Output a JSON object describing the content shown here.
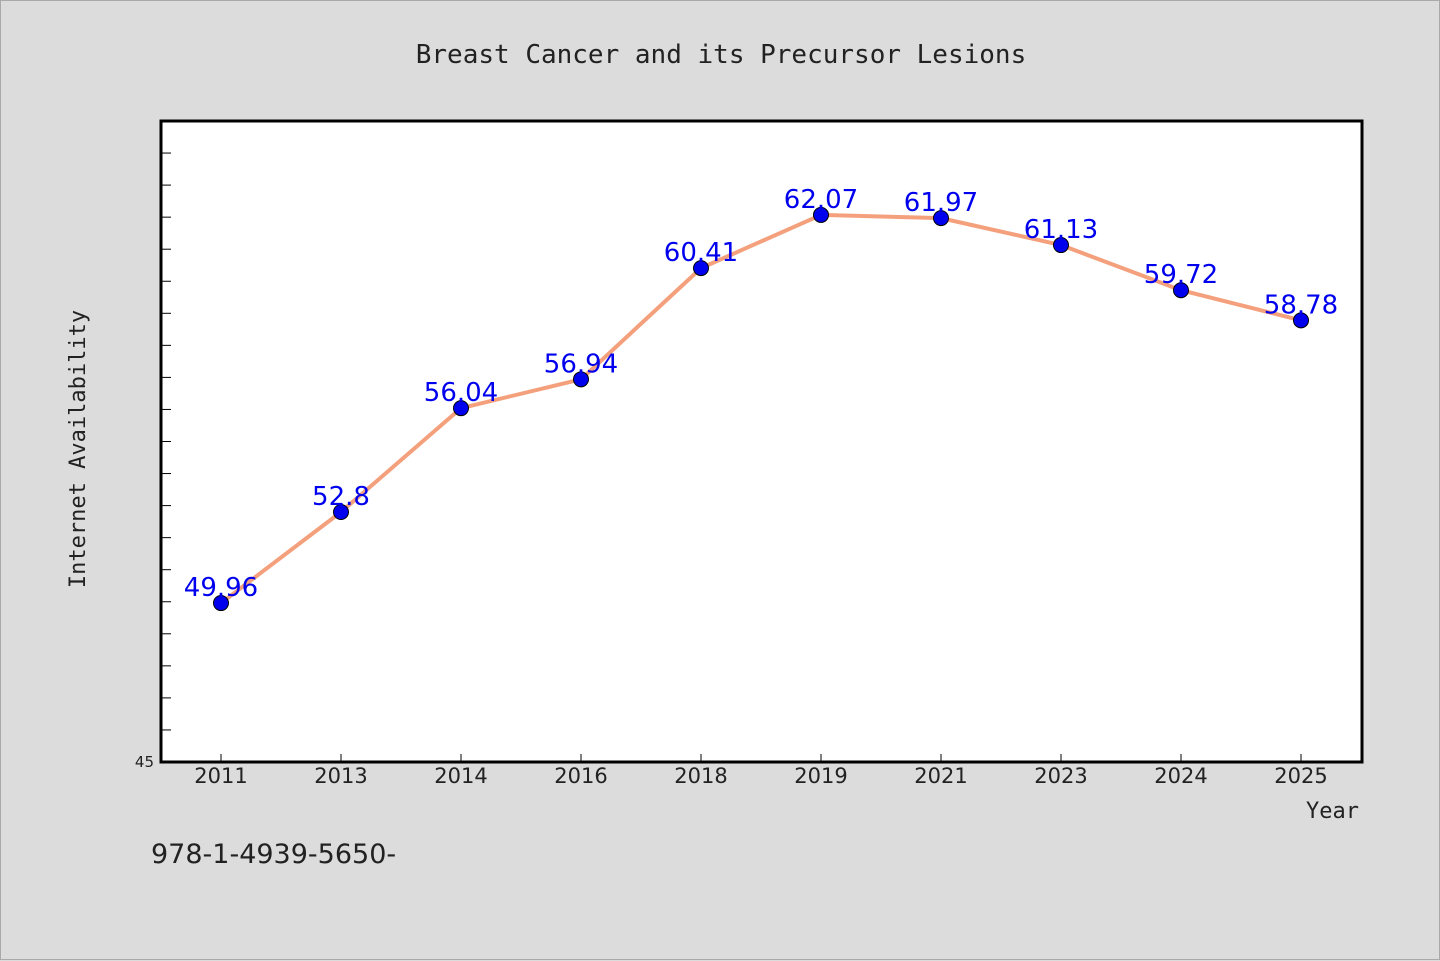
{
  "chart_data": {
    "type": "line",
    "title": "Breast Cancer and its Precursor Lesions",
    "xlabel": "Year",
    "ylabel": "Internet Availability",
    "categories": [
      "2011",
      "2013",
      "2014",
      "2016",
      "2018",
      "2019",
      "2021",
      "2023",
      "2024",
      "2025"
    ],
    "series": [
      {
        "values": [
          49.96,
          52.8,
          56.04,
          56.94,
          60.41,
          62.07,
          61.97,
          61.13,
          59.72,
          58.78
        ],
        "labels": [
          "49.96",
          "52.8",
          "56.04",
          "56.94",
          "60.41",
          "62.07",
          "61.97",
          "61.13",
          "59.72",
          "58.78"
        ],
        "line_color": "#f4a07c",
        "marker_color": "#0000ee"
      }
    ],
    "ylim": [
      45,
      65
    ],
    "y_min_label": "45",
    "grid": false,
    "legend": "none"
  },
  "footer_text": "978-1-4939-5650-"
}
